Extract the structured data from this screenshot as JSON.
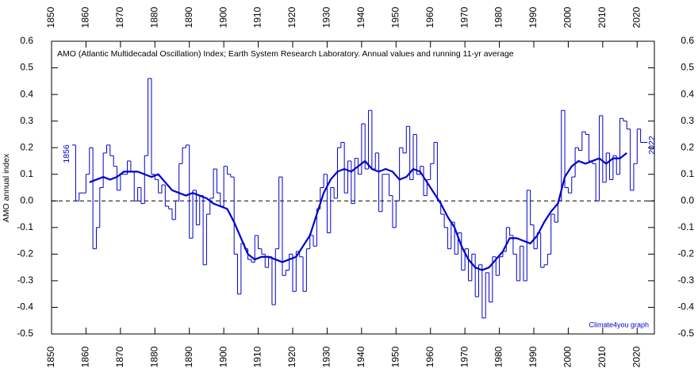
{
  "chart_data": {
    "type": "line",
    "title": "AMO (Atlantic Multidecadal Oscillation) Index; Earth System Research Laboratory. Annual values and running 11-yr average",
    "y_label": "AMO annual index",
    "annotations": [
      "1856",
      "2022",
      "Climate4you graph"
    ],
    "xlim": [
      1850,
      2025
    ],
    "ylim": [
      -0.5,
      0.6
    ],
    "xticks": [
      1850,
      1860,
      1870,
      1880,
      1890,
      1900,
      1910,
      1920,
      1930,
      1940,
      1950,
      1960,
      1970,
      1980,
      1990,
      2000,
      2010,
      2020
    ],
    "yticks": [
      0.6,
      0.5,
      0.4,
      0.3,
      0.2,
      0.1,
      {
        "value": 0,
        "label": "0.0"
      },
      -0.1,
      -0.2,
      -0.3,
      -0.4,
      -0.5
    ],
    "series": [
      {
        "color": "#0000cc",
        "step": true,
        "x": [
          1856,
          1857,
          1858,
          1859,
          1860,
          1861,
          1862,
          1863,
          1864,
          1865,
          1866,
          1867,
          1868,
          1869,
          1870,
          1871,
          1872,
          1873,
          1874,
          1875,
          1876,
          1877,
          1878,
          1879,
          1880,
          1881,
          1882,
          1883,
          1884,
          1885,
          1886,
          1887,
          1888,
          1889,
          1890,
          1891,
          1892,
          1893,
          1894,
          1895,
          1896,
          1897,
          1898,
          1899,
          1900,
          1901,
          1902,
          1903,
          1904,
          1905,
          1906,
          1907,
          1908,
          1909,
          1910,
          1911,
          1912,
          1913,
          1914,
          1915,
          1916,
          1917,
          1918,
          1919,
          1920,
          1921,
          1922,
          1923,
          1924,
          1925,
          1926,
          1927,
          1928,
          1929,
          1930,
          1931,
          1932,
          1933,
          1934,
          1935,
          1936,
          1937,
          1938,
          1939,
          1940,
          1941,
          1942,
          1943,
          1944,
          1945,
          1946,
          1947,
          1948,
          1949,
          1950,
          1951,
          1952,
          1953,
          1954,
          1955,
          1956,
          1957,
          1958,
          1959,
          1960,
          1961,
          1962,
          1963,
          1964,
          1965,
          1966,
          1967,
          1968,
          1969,
          1970,
          1971,
          1972,
          1973,
          1974,
          1975,
          1976,
          1977,
          1978,
          1979,
          1980,
          1981,
          1982,
          1983,
          1984,
          1985,
          1986,
          1987,
          1988,
          1989,
          1990,
          1991,
          1992,
          1993,
          1994,
          1995,
          1996,
          1997,
          1998,
          1999,
          2000,
          2001,
          2002,
          2003,
          2004,
          2005,
          2006,
          2007,
          2008,
          2009,
          2010,
          2011,
          2012,
          2013,
          2014,
          2015,
          2016,
          2017,
          2018,
          2019,
          2020,
          2021,
          2022
        ],
        "values": [
          0.21,
          0.0,
          0.03,
          0.03,
          0.1,
          0.2,
          -0.18,
          -0.1,
          0.05,
          0.18,
          0.21,
          0.17,
          0.13,
          0.04,
          0.1,
          0.1,
          0.15,
          0.11,
          0.0,
          0.05,
          -0.01,
          0.17,
          0.46,
          0.1,
          0.08,
          0.03,
          0.06,
          -0.02,
          -0.03,
          -0.07,
          0.0,
          0.14,
          0.2,
          0.21,
          -0.14,
          0.04,
          -0.09,
          0.02,
          -0.24,
          -0.05,
          0.01,
          0.12,
          0.03,
          -0.02,
          0.13,
          0.1,
          0.09,
          -0.2,
          -0.35,
          -0.16,
          -0.18,
          -0.22,
          -0.23,
          -0.13,
          -0.18,
          -0.2,
          -0.25,
          -0.21,
          -0.39,
          -0.18,
          0.09,
          -0.28,
          -0.26,
          -0.2,
          -0.34,
          -0.19,
          -0.21,
          -0.34,
          -0.18,
          -0.13,
          -0.17,
          -0.03,
          0.05,
          0.1,
          -0.12,
          0.05,
          0.01,
          0.2,
          0.22,
          0.03,
          0.15,
          -0.01,
          0.16,
          0.1,
          0.29,
          0.12,
          0.34,
          0.12,
          0.18,
          -0.04,
          0.1,
          0.1,
          0.02,
          -0.1,
          0.0,
          0.2,
          0.18,
          0.28,
          0.08,
          0.25,
          0.1,
          0.13,
          0.02,
          0.08,
          0.14,
          0.22,
          0.0,
          -0.05,
          -0.1,
          -0.18,
          -0.08,
          -0.2,
          -0.12,
          -0.26,
          -0.18,
          -0.3,
          -0.2,
          -0.36,
          -0.24,
          -0.44,
          -0.27,
          -0.38,
          -0.21,
          -0.28,
          -0.21,
          -0.19,
          -0.1,
          -0.13,
          -0.2,
          -0.3,
          -0.17,
          -0.3,
          0.04,
          -0.09,
          -0.18,
          -0.12,
          -0.25,
          -0.24,
          -0.2,
          -0.05,
          -0.08,
          0.0,
          0.34,
          0.05,
          0.03,
          0.09,
          0.2,
          0.19,
          0.26,
          0.25,
          0.15,
          0.14,
          0.0,
          0.32,
          0.07,
          0.18,
          0.08,
          0.17,
          0.1,
          0.31,
          0.3,
          0.27,
          0.04,
          0.14,
          0.27,
          0.22,
          0.22
        ]
      },
      {
        "color": "#0000cc",
        "step": false,
        "x": [
          1861,
          1863,
          1865,
          1867,
          1869,
          1871,
          1873,
          1875,
          1877,
          1879,
          1881,
          1883,
          1885,
          1887,
          1889,
          1891,
          1893,
          1895,
          1897,
          1899,
          1901,
          1903,
          1905,
          1907,
          1909,
          1911,
          1913,
          1915,
          1917,
          1919,
          1921,
          1923,
          1925,
          1927,
          1929,
          1931,
          1933,
          1935,
          1937,
          1939,
          1941,
          1943,
          1945,
          1947,
          1949,
          1951,
          1953,
          1955,
          1957,
          1959,
          1961,
          1963,
          1965,
          1967,
          1969,
          1971,
          1973,
          1975,
          1977,
          1979,
          1981,
          1983,
          1985,
          1987,
          1989,
          1991,
          1993,
          1995,
          1997,
          1999,
          2001,
          2003,
          2005,
          2007,
          2009,
          2011,
          2013,
          2015,
          2017
        ],
        "values": [
          0.07,
          0.08,
          0.09,
          0.08,
          0.09,
          0.11,
          0.11,
          0.11,
          0.1,
          0.09,
          0.1,
          0.07,
          0.04,
          0.03,
          0.02,
          0.03,
          0.02,
          0.01,
          -0.01,
          -0.02,
          -0.03,
          -0.08,
          -0.14,
          -0.2,
          -0.22,
          -0.21,
          -0.21,
          -0.22,
          -0.23,
          -0.22,
          -0.21,
          -0.17,
          -0.13,
          -0.05,
          0.03,
          0.08,
          0.11,
          0.12,
          0.11,
          0.13,
          0.15,
          0.12,
          0.11,
          0.12,
          0.11,
          0.08,
          0.09,
          0.12,
          0.11,
          0.07,
          0.03,
          -0.01,
          -0.06,
          -0.1,
          -0.17,
          -0.22,
          -0.25,
          -0.26,
          -0.25,
          -0.22,
          -0.19,
          -0.14,
          -0.14,
          -0.15,
          -0.16,
          -0.13,
          -0.08,
          -0.04,
          -0.01,
          0.09,
          0.13,
          0.15,
          0.14,
          0.15,
          0.16,
          0.14,
          0.16,
          0.16,
          0.18
        ]
      }
    ]
  }
}
